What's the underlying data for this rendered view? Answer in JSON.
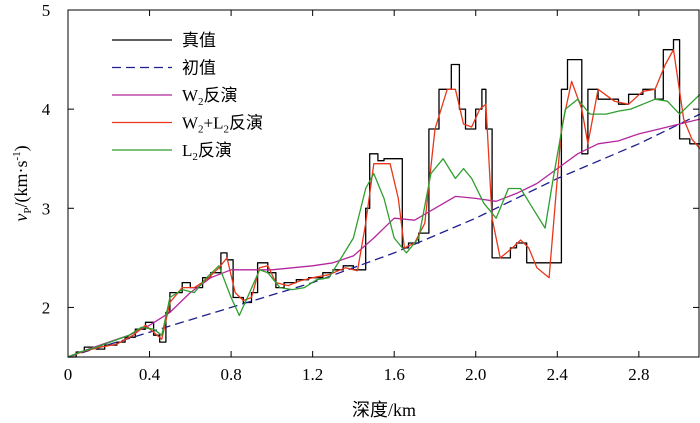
{
  "chart_data": {
    "type": "line",
    "xlabel": "深度/km",
    "ylabel": {
      "main": "v",
      "sub": "P",
      "rest": "/(km·s",
      "sup": "-1",
      "close": ")"
    },
    "xlim": [
      0,
      3.1
    ],
    "ylim": [
      1.5,
      5
    ],
    "xticks": [
      0,
      0.4,
      0.8,
      1.2,
      1.6,
      2.0,
      2.4,
      2.8
    ],
    "xtick_labels": [
      "0",
      "0.4",
      "0.8",
      "1.2",
      "1.6",
      "2.0",
      "2.4",
      "2.8"
    ],
    "yticks": [
      2,
      3,
      4,
      5
    ],
    "ytick_labels": [
      "2",
      "3",
      "4",
      "5"
    ],
    "grid": false,
    "legend": {
      "placement": "top-left",
      "entries": [
        {
          "text": "真值",
          "color": "#000000",
          "dash": false
        },
        {
          "text": "初值",
          "color": "#1f1f8f",
          "dash": true
        },
        {
          "text": "W",
          "sub": "2",
          "tail": "反演",
          "color": "#b5269e",
          "dash": false
        },
        {
          "text": "W",
          "sub": "2",
          "mid": "+L",
          "sub2": "2",
          "tail": "反演",
          "color": "#e8371b",
          "dash": false
        },
        {
          "text": "L",
          "sub": "2",
          "tail": "反演",
          "color": "#2e9e2e",
          "dash": false
        }
      ]
    },
    "series": [
      {
        "name": "真值",
        "color": "#000000",
        "points": [
          [
            0,
            1.5
          ],
          [
            0.04,
            1.5
          ],
          [
            0.04,
            1.55
          ],
          [
            0.08,
            1.55
          ],
          [
            0.08,
            1.6
          ],
          [
            0.14,
            1.6
          ],
          [
            0.14,
            1.58
          ],
          [
            0.18,
            1.58
          ],
          [
            0.18,
            1.62
          ],
          [
            0.24,
            1.62
          ],
          [
            0.24,
            1.65
          ],
          [
            0.28,
            1.65
          ],
          [
            0.28,
            1.7
          ],
          [
            0.33,
            1.7
          ],
          [
            0.33,
            1.78
          ],
          [
            0.38,
            1.78
          ],
          [
            0.38,
            1.85
          ],
          [
            0.42,
            1.85
          ],
          [
            0.42,
            1.72
          ],
          [
            0.45,
            1.72
          ],
          [
            0.45,
            1.65
          ],
          [
            0.48,
            1.65
          ],
          [
            0.48,
            1.95
          ],
          [
            0.5,
            1.95
          ],
          [
            0.5,
            2.15
          ],
          [
            0.56,
            2.15
          ],
          [
            0.56,
            2.25
          ],
          [
            0.6,
            2.25
          ],
          [
            0.6,
            2.2
          ],
          [
            0.66,
            2.2
          ],
          [
            0.66,
            2.3
          ],
          [
            0.7,
            2.3
          ],
          [
            0.7,
            2.35
          ],
          [
            0.75,
            2.35
          ],
          [
            0.75,
            2.55
          ],
          [
            0.78,
            2.55
          ],
          [
            0.78,
            2.48
          ],
          [
            0.81,
            2.48
          ],
          [
            0.81,
            2.1
          ],
          [
            0.86,
            2.1
          ],
          [
            0.86,
            2.05
          ],
          [
            0.9,
            2.05
          ],
          [
            0.9,
            2.15
          ],
          [
            0.93,
            2.15
          ],
          [
            0.93,
            2.45
          ],
          [
            0.98,
            2.45
          ],
          [
            0.98,
            2.35
          ],
          [
            1.02,
            2.35
          ],
          [
            1.02,
            2.2
          ],
          [
            1.06,
            2.2
          ],
          [
            1.06,
            2.25
          ],
          [
            1.12,
            2.25
          ],
          [
            1.12,
            2.28
          ],
          [
            1.18,
            2.28
          ],
          [
            1.18,
            2.3
          ],
          [
            1.25,
            2.3
          ],
          [
            1.25,
            2.35
          ],
          [
            1.3,
            2.35
          ],
          [
            1.3,
            2.38
          ],
          [
            1.35,
            2.38
          ],
          [
            1.35,
            2.42
          ],
          [
            1.4,
            2.42
          ],
          [
            1.4,
            2.38
          ],
          [
            1.46,
            2.38
          ],
          [
            1.46,
            3.0
          ],
          [
            1.48,
            3.0
          ],
          [
            1.48,
            3.55
          ],
          [
            1.52,
            3.55
          ],
          [
            1.52,
            3.48
          ],
          [
            1.55,
            3.48
          ],
          [
            1.55,
            3.5
          ],
          [
            1.64,
            3.5
          ],
          [
            1.64,
            2.6
          ],
          [
            1.67,
            2.6
          ],
          [
            1.67,
            2.65
          ],
          [
            1.72,
            2.65
          ],
          [
            1.72,
            2.75
          ],
          [
            1.77,
            2.75
          ],
          [
            1.77,
            3.8
          ],
          [
            1.82,
            3.8
          ],
          [
            1.82,
            4.2
          ],
          [
            1.88,
            4.2
          ],
          [
            1.88,
            4.45
          ],
          [
            1.92,
            4.45
          ],
          [
            1.92,
            4.0
          ],
          [
            1.95,
            4.0
          ],
          [
            1.95,
            3.8
          ],
          [
            2.0,
            3.8
          ],
          [
            2.0,
            4.0
          ],
          [
            2.03,
            4.0
          ],
          [
            2.03,
            4.2
          ],
          [
            2.05,
            4.2
          ],
          [
            2.05,
            3.8
          ],
          [
            2.08,
            3.8
          ],
          [
            2.08,
            2.5
          ],
          [
            2.17,
            2.5
          ],
          [
            2.17,
            2.6
          ],
          [
            2.2,
            2.6
          ],
          [
            2.2,
            2.65
          ],
          [
            2.25,
            2.65
          ],
          [
            2.25,
            2.45
          ],
          [
            2.33,
            2.45
          ],
          [
            2.33,
            2.45
          ],
          [
            2.42,
            2.45
          ],
          [
            2.42,
            4.2
          ],
          [
            2.45,
            4.2
          ],
          [
            2.45,
            4.5
          ],
          [
            2.52,
            4.5
          ],
          [
            2.52,
            3.55
          ],
          [
            2.55,
            3.55
          ],
          [
            2.55,
            4.2
          ],
          [
            2.6,
            4.2
          ],
          [
            2.6,
            4.1
          ],
          [
            2.7,
            4.1
          ],
          [
            2.7,
            4.05
          ],
          [
            2.75,
            4.05
          ],
          [
            2.75,
            4.15
          ],
          [
            2.82,
            4.15
          ],
          [
            2.82,
            4.2
          ],
          [
            2.88,
            4.2
          ],
          [
            2.88,
            4.1
          ],
          [
            2.92,
            4.1
          ],
          [
            2.92,
            4.6
          ],
          [
            2.97,
            4.6
          ],
          [
            2.97,
            4.7
          ],
          [
            3.0,
            4.7
          ],
          [
            3.0,
            3.7
          ],
          [
            3.05,
            3.7
          ],
          [
            3.05,
            3.65
          ],
          [
            3.1,
            3.65
          ]
        ]
      },
      {
        "name": "初值",
        "color": "#1f1f8f",
        "points": [
          [
            0,
            1.5
          ],
          [
            0.4,
            1.75
          ],
          [
            0.8,
            2.0
          ],
          [
            1.2,
            2.25
          ],
          [
            1.6,
            2.55
          ],
          [
            2.0,
            2.9
          ],
          [
            2.4,
            3.3
          ],
          [
            2.8,
            3.65
          ],
          [
            3.1,
            3.95
          ]
        ]
      },
      {
        "name": "W2反演",
        "color": "#b5269e",
        "points": [
          [
            0,
            1.5
          ],
          [
            0.1,
            1.58
          ],
          [
            0.2,
            1.65
          ],
          [
            0.3,
            1.72
          ],
          [
            0.4,
            1.82
          ],
          [
            0.5,
            1.95
          ],
          [
            0.6,
            2.15
          ],
          [
            0.7,
            2.3
          ],
          [
            0.8,
            2.38
          ],
          [
            0.9,
            2.38
          ],
          [
            1.0,
            2.38
          ],
          [
            1.1,
            2.4
          ],
          [
            1.2,
            2.42
          ],
          [
            1.3,
            2.45
          ],
          [
            1.4,
            2.52
          ],
          [
            1.5,
            2.7
          ],
          [
            1.6,
            2.9
          ],
          [
            1.7,
            2.88
          ],
          [
            1.8,
            3.0
          ],
          [
            1.9,
            3.12
          ],
          [
            2.0,
            3.1
          ],
          [
            2.1,
            3.07
          ],
          [
            2.2,
            3.15
          ],
          [
            2.3,
            3.25
          ],
          [
            2.4,
            3.4
          ],
          [
            2.5,
            3.55
          ],
          [
            2.6,
            3.65
          ],
          [
            2.7,
            3.68
          ],
          [
            2.8,
            3.75
          ],
          [
            2.9,
            3.8
          ],
          [
            3.0,
            3.85
          ],
          [
            3.1,
            3.9
          ]
        ]
      },
      {
        "name": "W2+L2反演",
        "color": "#e8371b",
        "points": [
          [
            0,
            1.5
          ],
          [
            0.08,
            1.56
          ],
          [
            0.16,
            1.6
          ],
          [
            0.24,
            1.63
          ],
          [
            0.32,
            1.72
          ],
          [
            0.38,
            1.82
          ],
          [
            0.42,
            1.75
          ],
          [
            0.46,
            1.68
          ],
          [
            0.5,
            2.05
          ],
          [
            0.56,
            2.2
          ],
          [
            0.62,
            2.2
          ],
          [
            0.68,
            2.28
          ],
          [
            0.74,
            2.4
          ],
          [
            0.78,
            2.5
          ],
          [
            0.82,
            2.15
          ],
          [
            0.86,
            2.07
          ],
          [
            0.9,
            2.1
          ],
          [
            0.94,
            2.4
          ],
          [
            0.98,
            2.42
          ],
          [
            1.02,
            2.25
          ],
          [
            1.08,
            2.22
          ],
          [
            1.14,
            2.27
          ],
          [
            1.2,
            2.3
          ],
          [
            1.28,
            2.33
          ],
          [
            1.36,
            2.4
          ],
          [
            1.42,
            2.37
          ],
          [
            1.46,
            2.85
          ],
          [
            1.5,
            3.45
          ],
          [
            1.54,
            3.45
          ],
          [
            1.58,
            3.45
          ],
          [
            1.62,
            3.1
          ],
          [
            1.65,
            2.6
          ],
          [
            1.7,
            2.65
          ],
          [
            1.75,
            2.85
          ],
          [
            1.8,
            3.8
          ],
          [
            1.86,
            4.2
          ],
          [
            1.9,
            4.2
          ],
          [
            1.94,
            3.85
          ],
          [
            1.98,
            3.82
          ],
          [
            2.02,
            4.0
          ],
          [
            2.05,
            4.05
          ],
          [
            2.08,
            2.9
          ],
          [
            2.12,
            2.5
          ],
          [
            2.18,
            2.6
          ],
          [
            2.22,
            2.68
          ],
          [
            2.26,
            2.6
          ],
          [
            2.3,
            2.4
          ],
          [
            2.36,
            2.3
          ],
          [
            2.42,
            3.8
          ],
          [
            2.47,
            4.28
          ],
          [
            2.52,
            4.0
          ],
          [
            2.55,
            3.65
          ],
          [
            2.6,
            4.2
          ],
          [
            2.68,
            4.08
          ],
          [
            2.75,
            4.05
          ],
          [
            2.82,
            4.18
          ],
          [
            2.88,
            4.2
          ],
          [
            2.93,
            4.45
          ],
          [
            2.97,
            4.6
          ],
          [
            3.02,
            3.9
          ],
          [
            3.06,
            3.7
          ],
          [
            3.1,
            3.6
          ]
        ]
      },
      {
        "name": "L2反演",
        "color": "#2e9e2e",
        "points": [
          [
            0,
            1.5
          ],
          [
            0.06,
            1.55
          ],
          [
            0.14,
            1.6
          ],
          [
            0.22,
            1.66
          ],
          [
            0.3,
            1.72
          ],
          [
            0.36,
            1.8
          ],
          [
            0.42,
            1.78
          ],
          [
            0.46,
            1.72
          ],
          [
            0.5,
            2.1
          ],
          [
            0.56,
            2.18
          ],
          [
            0.62,
            2.15
          ],
          [
            0.68,
            2.3
          ],
          [
            0.74,
            2.42
          ],
          [
            0.8,
            2.1
          ],
          [
            0.84,
            1.92
          ],
          [
            0.88,
            2.1
          ],
          [
            0.94,
            2.38
          ],
          [
            0.98,
            2.35
          ],
          [
            1.04,
            2.2
          ],
          [
            1.1,
            2.18
          ],
          [
            1.16,
            2.2
          ],
          [
            1.22,
            2.28
          ],
          [
            1.28,
            2.3
          ],
          [
            1.34,
            2.5
          ],
          [
            1.4,
            2.7
          ],
          [
            1.46,
            3.2
          ],
          [
            1.5,
            3.35
          ],
          [
            1.55,
            3.1
          ],
          [
            1.6,
            2.7
          ],
          [
            1.66,
            2.55
          ],
          [
            1.72,
            2.7
          ],
          [
            1.78,
            3.35
          ],
          [
            1.84,
            3.5
          ],
          [
            1.9,
            3.3
          ],
          [
            1.94,
            3.4
          ],
          [
            1.98,
            3.3
          ],
          [
            2.04,
            3.05
          ],
          [
            2.1,
            2.9
          ],
          [
            2.16,
            3.2
          ],
          [
            2.22,
            3.2
          ],
          [
            2.28,
            3.0
          ],
          [
            2.34,
            2.8
          ],
          [
            2.38,
            3.3
          ],
          [
            2.44,
            4.0
          ],
          [
            2.5,
            4.1
          ],
          [
            2.56,
            3.95
          ],
          [
            2.64,
            3.95
          ],
          [
            2.7,
            3.98
          ],
          [
            2.76,
            4.0
          ],
          [
            2.82,
            4.05
          ],
          [
            2.88,
            4.1
          ],
          [
            2.94,
            4.08
          ],
          [
            3.0,
            3.95
          ],
          [
            3.05,
            4.05
          ],
          [
            3.1,
            4.15
          ]
        ]
      }
    ]
  }
}
